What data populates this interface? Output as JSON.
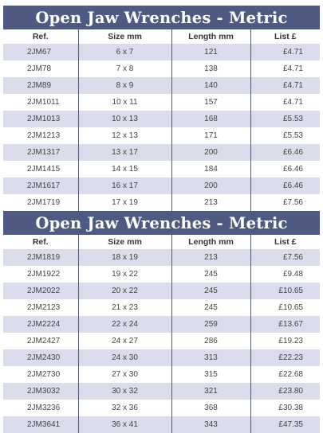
{
  "tables": [
    {
      "title": "Open Jaw Wrenches - Metric",
      "headers": [
        "Ref.",
        "Size mm",
        "Length mm",
        "List £"
      ],
      "rows": [
        [
          "2JM67",
          "6 x 7",
          "121",
          "£4.71"
        ],
        [
          "2JM78",
          "7 x 8",
          "138",
          "£4.71"
        ],
        [
          "2JM89",
          "8 x 9",
          "140",
          "£4.71"
        ],
        [
          "2JM1011",
          "10 x 11",
          "157",
          "£4.71"
        ],
        [
          "2JM1013",
          "10 x 13",
          "168",
          "£5.53"
        ],
        [
          "2JM1213",
          "12 x 13",
          "171",
          "£5.53"
        ],
        [
          "2JM1317",
          "13 x 17",
          "200",
          "£6.46"
        ],
        [
          "2JM1415",
          "14 x 15",
          "184",
          "£6.46"
        ],
        [
          "2JM1617",
          "16 x 17",
          "200",
          "£6.46"
        ],
        [
          "2JM1719",
          "17 x 19",
          "213",
          "£7.56"
        ]
      ]
    },
    {
      "title": "Open Jaw Wrenches - Metric",
      "headers": [
        "Ref.",
        "Size mm",
        "Length mm",
        "List £"
      ],
      "rows": [
        [
          "2JM1819",
          "18 x 19",
          "213",
          "£7.56"
        ],
        [
          "2JM1922",
          "19 x 22",
          "245",
          "£9.48"
        ],
        [
          "2JM2022",
          "20 x 22",
          "245",
          "£10.65"
        ],
        [
          "2JM2123",
          "21 x 23",
          "245",
          "£10.65"
        ],
        [
          "2JM2224",
          "22 x 24",
          "259",
          "£13.67"
        ],
        [
          "2JM2427",
          "24 x 27",
          "286",
          "£19.23"
        ],
        [
          "2JM2430",
          "24 x 30",
          "313",
          "£22.23"
        ],
        [
          "2JM2730",
          "27 x 30",
          "315",
          "£22.68"
        ],
        [
          "2JM3032",
          "30 x 32",
          "321",
          "£23.80"
        ],
        [
          "2JM3236",
          "32 x 36",
          "368",
          "£30.38"
        ],
        [
          "2JM3641",
          "36 x 41",
          "343",
          "£47.35"
        ]
      ]
    }
  ]
}
